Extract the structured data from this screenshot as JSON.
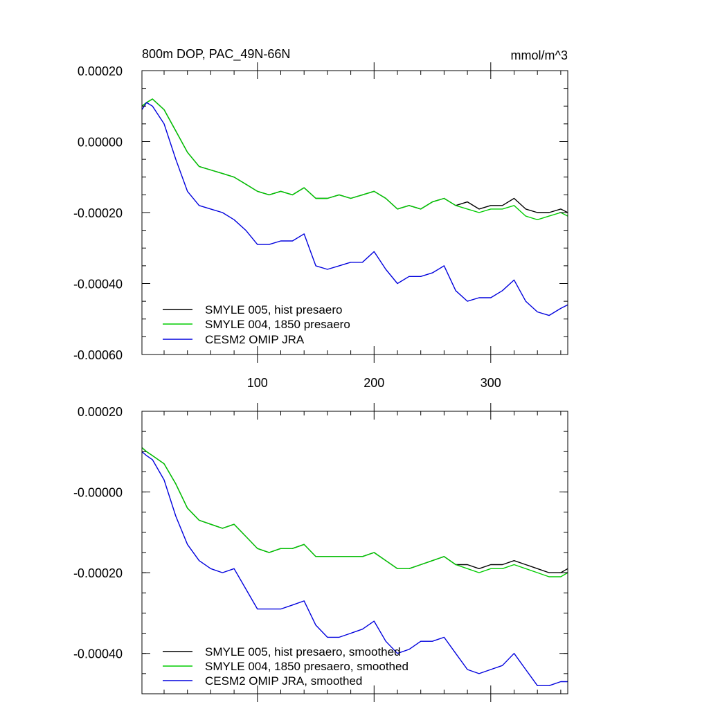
{
  "chart_data": [
    {
      "type": "line",
      "title_left": "800m DOP, PAC_49N-66N",
      "title_right": "mmol/m^3",
      "xlim": [
        1,
        366
      ],
      "ylim": [
        -0.0006,
        0.0002
      ],
      "x_ticks": [
        100,
        200,
        300
      ],
      "x_tick_labels": [
        "100",
        "200",
        "300"
      ],
      "y_ticks": [
        0.0002,
        0.0,
        -0.0002,
        -0.0004,
        -0.0006
      ],
      "y_tick_labels": [
        "0.00020",
        "0.00000",
        "-0.00020",
        "-0.00040",
        "-0.00060"
      ],
      "legend_position": "bottom-left",
      "series": [
        {
          "name": "SMYLE 005, hist presaero",
          "color": "#000000",
          "x": [
            1,
            5,
            10,
            20,
            30,
            40,
            50,
            60,
            70,
            80,
            90,
            100,
            110,
            120,
            130,
            140,
            150,
            160,
            170,
            180,
            190,
            200,
            210,
            220,
            230,
            240,
            250,
            260,
            270,
            280,
            290,
            300,
            310,
            320,
            330,
            340,
            350,
            360,
            366
          ],
          "y": [
            0.0001,
            0.00011,
            0.00012,
            9e-05,
            3e-05,
            -3e-05,
            -7e-05,
            -8e-05,
            -9e-05,
            -0.0001,
            -0.00012,
            -0.00014,
            -0.00015,
            -0.00014,
            -0.00015,
            -0.00013,
            -0.00016,
            -0.00016,
            -0.00015,
            -0.00016,
            -0.00015,
            -0.00014,
            -0.00016,
            -0.00019,
            -0.00018,
            -0.00019,
            -0.00017,
            -0.00016,
            -0.00018,
            -0.00017,
            -0.00019,
            -0.00018,
            -0.00018,
            -0.00016,
            -0.00019,
            -0.0002,
            -0.0002,
            -0.00019,
            -0.0002
          ]
        },
        {
          "name": "SMYLE 004, 1850 presaero",
          "color": "#00cc00",
          "x": [
            1,
            5,
            10,
            20,
            30,
            40,
            50,
            60,
            70,
            80,
            90,
            100,
            110,
            120,
            130,
            140,
            150,
            160,
            170,
            180,
            190,
            200,
            210,
            220,
            230,
            240,
            250,
            260,
            270,
            280,
            290,
            300,
            310,
            320,
            330,
            340,
            350,
            360,
            366
          ],
          "y": [
            0.0001,
            0.00011,
            0.00012,
            9e-05,
            3e-05,
            -3e-05,
            -7e-05,
            -8e-05,
            -9e-05,
            -0.0001,
            -0.00012,
            -0.00014,
            -0.00015,
            -0.00014,
            -0.00015,
            -0.00013,
            -0.00016,
            -0.00016,
            -0.00015,
            -0.00016,
            -0.00015,
            -0.00014,
            -0.00016,
            -0.00019,
            -0.00018,
            -0.00019,
            -0.00017,
            -0.00016,
            -0.00018,
            -0.00019,
            -0.0002,
            -0.00019,
            -0.00019,
            -0.00018,
            -0.00021,
            -0.00022,
            -0.00021,
            -0.0002,
            -0.00021
          ]
        },
        {
          "name": "CESM2 OMIP JRA",
          "color": "#0000dd",
          "x": [
            1,
            5,
            10,
            20,
            30,
            40,
            50,
            60,
            70,
            80,
            90,
            100,
            110,
            120,
            130,
            140,
            150,
            160,
            170,
            180,
            190,
            200,
            210,
            220,
            230,
            240,
            250,
            260,
            270,
            280,
            290,
            300,
            310,
            320,
            330,
            340,
            350,
            360,
            366
          ],
          "y": [
            9e-05,
            0.00011,
            0.0001,
            5e-05,
            -5e-05,
            -0.00014,
            -0.00018,
            -0.00019,
            -0.0002,
            -0.00022,
            -0.00025,
            -0.00029,
            -0.00029,
            -0.00028,
            -0.00028,
            -0.00026,
            -0.00035,
            -0.00036,
            -0.00035,
            -0.00034,
            -0.00034,
            -0.00031,
            -0.00036,
            -0.0004,
            -0.00038,
            -0.00038,
            -0.00037,
            -0.00035,
            -0.00042,
            -0.00045,
            -0.00044,
            -0.00044,
            -0.00042,
            -0.00039,
            -0.00045,
            -0.00048,
            -0.00049,
            -0.00047,
            -0.00046
          ]
        }
      ]
    },
    {
      "type": "line",
      "xlim": [
        1,
        366
      ],
      "ylim": [
        -0.0005,
        0.0002
      ],
      "x_ticks": [
        100,
        200,
        300
      ],
      "y_ticks": [
        0.0002,
        0.0,
        -0.0002,
        -0.0004
      ],
      "y_tick_labels": [
        "0.00020",
        "-0.00000",
        "-0.00020",
        "-0.00040"
      ],
      "legend_position": "bottom-left",
      "series": [
        {
          "name": "SMYLE 005, hist presaero, smoothed",
          "color": "#000000",
          "x": [
            1,
            5,
            10,
            20,
            30,
            40,
            50,
            60,
            70,
            80,
            90,
            100,
            110,
            120,
            130,
            140,
            150,
            160,
            170,
            180,
            190,
            200,
            210,
            220,
            230,
            240,
            250,
            260,
            270,
            280,
            290,
            300,
            310,
            320,
            330,
            340,
            350,
            360,
            366
          ],
          "y": [
            0.00011,
            0.0001,
            9e-05,
            7e-05,
            2e-05,
            -4e-05,
            -7e-05,
            -8e-05,
            -9e-05,
            -8e-05,
            -0.00011,
            -0.00014,
            -0.00015,
            -0.00014,
            -0.00014,
            -0.00013,
            -0.00016,
            -0.00016,
            -0.00016,
            -0.00016,
            -0.00016,
            -0.00015,
            -0.00017,
            -0.00019,
            -0.00019,
            -0.00018,
            -0.00017,
            -0.00016,
            -0.00018,
            -0.00018,
            -0.00019,
            -0.00018,
            -0.00018,
            -0.00017,
            -0.00018,
            -0.00019,
            -0.0002,
            -0.0002,
            -0.00019
          ]
        },
        {
          "name": "SMYLE 004, 1850 presaero, smoothed",
          "color": "#00cc00",
          "x": [
            1,
            5,
            10,
            20,
            30,
            40,
            50,
            60,
            70,
            80,
            90,
            100,
            110,
            120,
            130,
            140,
            150,
            160,
            170,
            180,
            190,
            200,
            210,
            220,
            230,
            240,
            250,
            260,
            270,
            280,
            290,
            300,
            310,
            320,
            330,
            340,
            350,
            360,
            366
          ],
          "y": [
            0.00011,
            0.0001,
            9e-05,
            7e-05,
            2e-05,
            -4e-05,
            -7e-05,
            -8e-05,
            -9e-05,
            -8e-05,
            -0.00011,
            -0.00014,
            -0.00015,
            -0.00014,
            -0.00014,
            -0.00013,
            -0.00016,
            -0.00016,
            -0.00016,
            -0.00016,
            -0.00016,
            -0.00015,
            -0.00017,
            -0.00019,
            -0.00019,
            -0.00018,
            -0.00017,
            -0.00016,
            -0.00018,
            -0.00019,
            -0.0002,
            -0.00019,
            -0.00019,
            -0.00018,
            -0.00019,
            -0.0002,
            -0.00021,
            -0.00021,
            -0.0002
          ]
        },
        {
          "name": "CESM2 OMIP JRA, smoothed",
          "color": "#0000dd",
          "x": [
            1,
            5,
            10,
            20,
            30,
            40,
            50,
            60,
            70,
            80,
            90,
            100,
            110,
            120,
            130,
            140,
            150,
            160,
            170,
            180,
            190,
            200,
            210,
            220,
            230,
            240,
            250,
            260,
            270,
            280,
            290,
            300,
            310,
            320,
            330,
            340,
            350,
            360,
            366
          ],
          "y": [
            0.0001,
            9e-05,
            8e-05,
            3e-05,
            -6e-05,
            -0.00013,
            -0.00017,
            -0.00019,
            -0.0002,
            -0.00019,
            -0.00024,
            -0.00029,
            -0.00029,
            -0.00029,
            -0.00028,
            -0.00027,
            -0.00033,
            -0.00036,
            -0.00036,
            -0.00035,
            -0.00034,
            -0.00032,
            -0.00037,
            -0.0004,
            -0.00039,
            -0.00037,
            -0.00037,
            -0.00036,
            -0.0004,
            -0.00044,
            -0.00045,
            -0.00044,
            -0.00043,
            -0.0004,
            -0.00044,
            -0.00048,
            -0.00048,
            -0.00047,
            -0.00047
          ]
        }
      ]
    }
  ]
}
